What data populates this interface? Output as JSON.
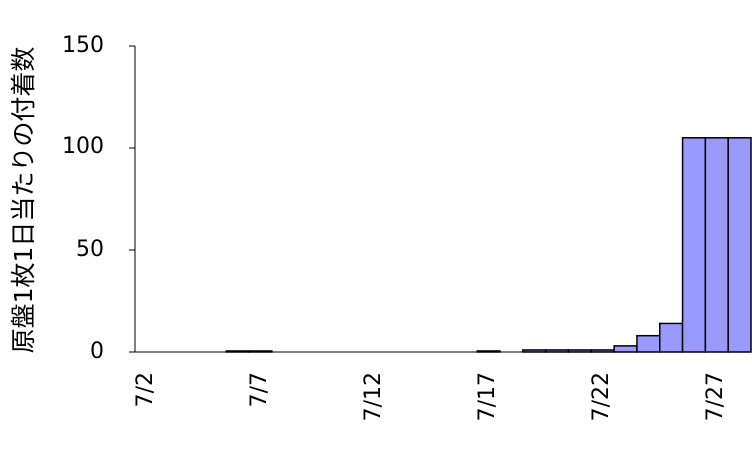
{
  "chart_data": {
    "type": "bar",
    "categories": [
      "7/2",
      "7/3",
      "7/4",
      "7/5",
      "7/6",
      "7/7",
      "7/8",
      "7/9",
      "7/10",
      "7/11",
      "7/12",
      "7/13",
      "7/14",
      "7/15",
      "7/16",
      "7/17",
      "7/18",
      "7/19",
      "7/20",
      "7/21",
      "7/22",
      "7/23",
      "7/24",
      "7/25",
      "7/26",
      "7/27",
      "7/28"
    ],
    "values": [
      0,
      0,
      0,
      0,
      0.5,
      0.5,
      0,
      0,
      0,
      0,
      0,
      0,
      0,
      0,
      0,
      0.5,
      0,
      1,
      1,
      1,
      1,
      3,
      8,
      14,
      105,
      105,
      105
    ],
    "xtick_labels": [
      "7/2",
      "7/7",
      "7/12",
      "7/17",
      "7/22",
      "7/27"
    ],
    "yticks": [
      "0",
      "50",
      "100",
      "150"
    ],
    "ylim": [
      0,
      150
    ],
    "ylabel": "原盤1枚1日当たりの付着数",
    "xlabel": "",
    "bar_color": "#9999ff",
    "bar_edge_color": "#000000",
    "grid": false
  }
}
